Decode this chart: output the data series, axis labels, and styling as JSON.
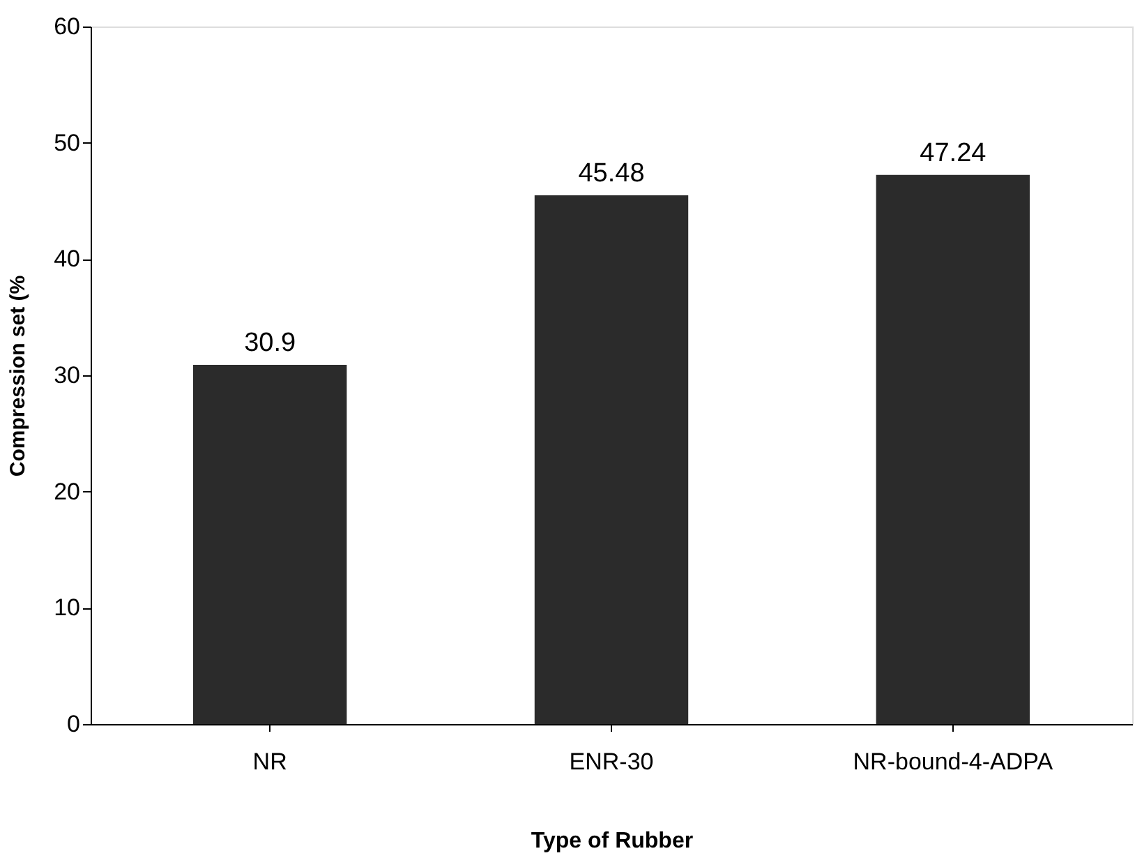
{
  "chart_data": {
    "type": "bar",
    "xlabel": "Type of Rubber",
    "ylabel": "Compression set (%",
    "categories": [
      "NR",
      "ENR-30",
      "NR-bound-4-ADPA"
    ],
    "values": [
      30.9,
      45.48,
      47.24
    ],
    "color": "#2b2b2b",
    "ylim": [
      0,
      60
    ],
    "yticks": [
      0,
      10,
      20,
      30,
      40,
      50,
      60
    ],
    "grid": false,
    "data_labels": true
  }
}
